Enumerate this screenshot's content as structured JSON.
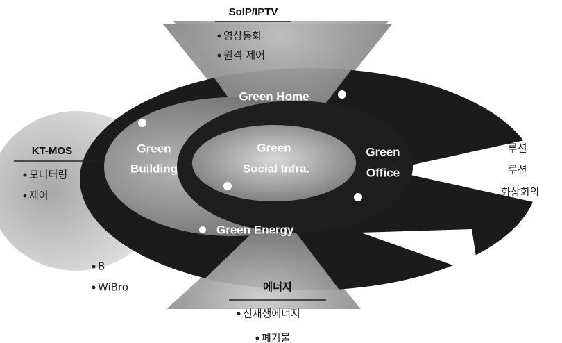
{
  "nodes": [
    {
      "label": [
        "Green Home"
      ]
    },
    {
      "label": [
        "Green",
        "Building"
      ]
    },
    {
      "label": [
        "Green",
        "Social Infra."
      ]
    },
    {
      "label": [
        "Green",
        "Office"
      ]
    },
    {
      "label": [
        "Green Energy"
      ]
    }
  ],
  "services": [
    {
      "title": "SoIP/IPTV",
      "items": [
        "영상통화",
        "원격 제어"
      ]
    },
    {
      "title": "KT-MOS",
      "items": [
        "모니터링",
        "제어"
      ]
    },
    {
      "items": [
        "B",
        "WiBro"
      ]
    },
    {
      "title": "에너지",
      "items": [
        "신재생에너지",
        "폐기물"
      ]
    },
    {
      "items": [
        "루션",
        "루션",
        "화상회의"
      ]
    }
  ]
}
